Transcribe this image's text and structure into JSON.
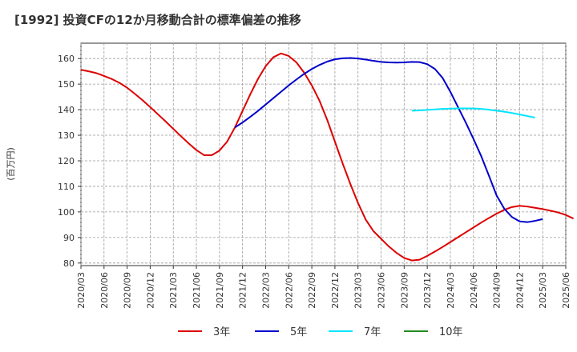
{
  "chart_data": {
    "type": "line",
    "title": "[1992]  投資CFの12か月移動合計の標準偏差の推移",
    "ylabel": "(百万円)",
    "xlabel": "",
    "ylim": [
      79,
      166
    ],
    "yticks": [
      80,
      90,
      100,
      110,
      120,
      130,
      140,
      150,
      160
    ],
    "x_start": "2020/03",
    "x_end": "2025/06",
    "xticks": [
      "2020/03",
      "2020/06",
      "2020/09",
      "2020/12",
      "2021/03",
      "2021/06",
      "2021/09",
      "2021/12",
      "2022/03",
      "2022/06",
      "2022/09",
      "2022/12",
      "2023/03",
      "2023/06",
      "2023/09",
      "2023/12",
      "2024/03",
      "2024/06",
      "2024/09",
      "2024/12",
      "2025/03",
      "2025/06"
    ],
    "grid": true,
    "legend_position": "bottom",
    "series": [
      {
        "name": "3年",
        "color": "#dd0000",
        "points": [
          [
            "2020/03",
            155.6
          ],
          [
            "2020/04",
            155.0
          ],
          [
            "2020/05",
            154.3
          ],
          [
            "2020/06",
            153.2
          ],
          [
            "2020/07",
            152.0
          ],
          [
            "2020/08",
            150.5
          ],
          [
            "2020/09",
            148.6
          ],
          [
            "2020/10",
            146.2
          ],
          [
            "2020/11",
            143.7
          ],
          [
            "2020/12",
            141.0
          ],
          [
            "2021/01",
            138.2
          ],
          [
            "2021/02",
            135.4
          ],
          [
            "2021/03",
            132.5
          ],
          [
            "2021/04",
            129.6
          ],
          [
            "2021/05",
            126.8
          ],
          [
            "2021/06",
            124.2
          ],
          [
            "2021/07",
            122.2
          ],
          [
            "2021/08",
            122.2
          ],
          [
            "2021/09",
            124.0
          ],
          [
            "2021/10",
            127.5
          ],
          [
            "2021/11",
            133.0
          ],
          [
            "2021/12",
            139.5
          ],
          [
            "2022/01",
            146.0
          ],
          [
            "2022/02",
            152.0
          ],
          [
            "2022/03",
            157.0
          ],
          [
            "2022/04",
            160.5
          ],
          [
            "2022/05",
            162.0
          ],
          [
            "2022/06",
            161.0
          ],
          [
            "2022/07",
            158.5
          ],
          [
            "2022/08",
            154.5
          ],
          [
            "2022/09",
            149.5
          ],
          [
            "2022/10",
            143.5
          ],
          [
            "2022/11",
            136.0
          ],
          [
            "2022/12",
            127.5
          ],
          [
            "2023/01",
            119.0
          ],
          [
            "2023/02",
            111.0
          ],
          [
            "2023/03",
            103.5
          ],
          [
            "2023/04",
            97.0
          ],
          [
            "2023/05",
            92.5
          ],
          [
            "2023/06",
            89.5
          ],
          [
            "2023/07",
            86.5
          ],
          [
            "2023/08",
            84.0
          ],
          [
            "2023/09",
            82.0
          ],
          [
            "2023/10",
            81.0
          ],
          [
            "2023/11",
            81.3
          ],
          [
            "2023/12",
            82.8
          ],
          [
            "2024/01",
            84.5
          ],
          [
            "2024/02",
            86.3
          ],
          [
            "2024/03",
            88.2
          ],
          [
            "2024/04",
            90.1
          ],
          [
            "2024/05",
            92.0
          ],
          [
            "2024/06",
            93.9
          ],
          [
            "2024/07",
            95.8
          ],
          [
            "2024/08",
            97.6
          ],
          [
            "2024/09",
            99.3
          ],
          [
            "2024/10",
            100.8
          ],
          [
            "2024/11",
            101.9
          ],
          [
            "2024/12",
            102.4
          ],
          [
            "2025/01",
            102.1
          ],
          [
            "2025/02",
            101.6
          ],
          [
            "2025/03",
            101.1
          ],
          [
            "2025/04",
            100.5
          ],
          [
            "2025/05",
            99.8
          ],
          [
            "2025/06",
            98.8
          ],
          [
            "2025/07",
            97.4
          ]
        ]
      },
      {
        "name": "5年",
        "color": "#0000cc",
        "points": [
          [
            "2021/11",
            133.0
          ],
          [
            "2021/12",
            135.0
          ],
          [
            "2022/01",
            137.2
          ],
          [
            "2022/02",
            139.5
          ],
          [
            "2022/03",
            142.0
          ],
          [
            "2022/04",
            144.5
          ],
          [
            "2022/05",
            147.0
          ],
          [
            "2022/06",
            149.5
          ],
          [
            "2022/07",
            151.8
          ],
          [
            "2022/08",
            154.0
          ],
          [
            "2022/09",
            155.9
          ],
          [
            "2022/10",
            157.5
          ],
          [
            "2022/11",
            158.8
          ],
          [
            "2022/12",
            159.7
          ],
          [
            "2023/01",
            160.1
          ],
          [
            "2023/02",
            160.2
          ],
          [
            "2023/03",
            160.0
          ],
          [
            "2023/04",
            159.6
          ],
          [
            "2023/05",
            159.1
          ],
          [
            "2023/06",
            158.7
          ],
          [
            "2023/07",
            158.5
          ],
          [
            "2023/08",
            158.4
          ],
          [
            "2023/09",
            158.5
          ],
          [
            "2023/10",
            158.7
          ],
          [
            "2023/11",
            158.6
          ],
          [
            "2023/12",
            157.8
          ],
          [
            "2024/01",
            155.9
          ],
          [
            "2024/02",
            152.4
          ],
          [
            "2024/03",
            147.0
          ],
          [
            "2024/04",
            141.0
          ],
          [
            "2024/05",
            135.0
          ],
          [
            "2024/06",
            128.6
          ],
          [
            "2024/07",
            121.9
          ],
          [
            "2024/08",
            114.3
          ],
          [
            "2024/09",
            106.5
          ],
          [
            "2024/10",
            101.3
          ],
          [
            "2024/11",
            98.0
          ],
          [
            "2024/12",
            96.3
          ],
          [
            "2025/01",
            96.0
          ],
          [
            "2025/02",
            96.5
          ],
          [
            "2025/03",
            97.2
          ]
        ]
      },
      {
        "name": "7年",
        "color": "#00e5ff",
        "points": [
          [
            "2023/10",
            139.6
          ],
          [
            "2023/11",
            139.7
          ],
          [
            "2023/12",
            139.9
          ],
          [
            "2024/01",
            140.1
          ],
          [
            "2024/02",
            140.3
          ],
          [
            "2024/03",
            140.4
          ],
          [
            "2024/04",
            140.5
          ],
          [
            "2024/05",
            140.5
          ],
          [
            "2024/06",
            140.5
          ],
          [
            "2024/07",
            140.3
          ],
          [
            "2024/08",
            140.0
          ],
          [
            "2024/09",
            139.6
          ],
          [
            "2024/10",
            139.2
          ],
          [
            "2024/11",
            138.7
          ],
          [
            "2024/12",
            138.1
          ],
          [
            "2025/01",
            137.5
          ],
          [
            "2025/02",
            136.9
          ]
        ]
      },
      {
        "name": "10年",
        "color": "#228b22",
        "points": []
      }
    ]
  }
}
